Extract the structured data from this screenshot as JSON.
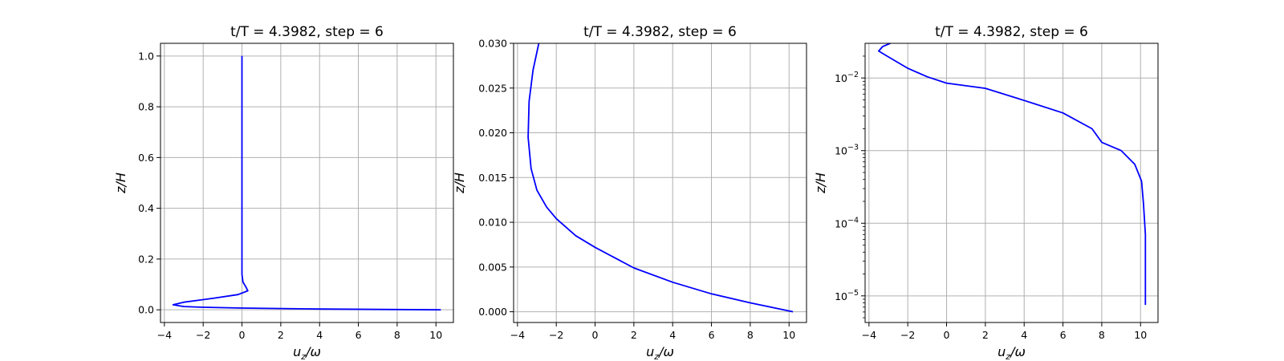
{
  "chart_data": [
    {
      "type": "line",
      "title": "t/T = 4.3982, step = 6",
      "xlabel_base": "u",
      "xlabel_sub": "z",
      "xlabel_tail": "/ω",
      "ylabel": "z/H",
      "xlim": [
        -4.2,
        10.9
      ],
      "ylim": [
        -0.05,
        1.05
      ],
      "yscale": "linear",
      "grid": true,
      "xticks": [
        -4,
        -2,
        0,
        2,
        4,
        6,
        8,
        10
      ],
      "xtick_labels": [
        "−4",
        "−2",
        "0",
        "2",
        "4",
        "6",
        "8",
        "10"
      ],
      "yticks": [
        0.0,
        0.2,
        0.4,
        0.6,
        0.8,
        1.0
      ],
      "ytick_labels": [
        "0.0",
        "0.2",
        "0.4",
        "0.6",
        "0.8",
        "1.0"
      ],
      "series": [
        {
          "color": "#0000ff",
          "x": [
            10.25,
            4.0,
            0.0,
            -2.0,
            -3.0,
            -3.55,
            -3.0,
            -1.5,
            -0.2,
            0.3,
            0.2,
            0.05,
            0.0,
            0.0,
            0.0
          ],
          "y": [
            0.0,
            0.003,
            0.007,
            0.01,
            0.013,
            0.02,
            0.03,
            0.045,
            0.06,
            0.075,
            0.09,
            0.11,
            0.14,
            0.5,
            1.0
          ]
        }
      ]
    },
    {
      "type": "line",
      "title": "t/T = 4.3982, step = 6",
      "xlabel_base": "u",
      "xlabel_sub": "z",
      "xlabel_tail": "/ω",
      "ylabel": "z/H",
      "xlim": [
        -4.2,
        10.9
      ],
      "ylim": [
        -0.0012,
        0.03
      ],
      "yscale": "linear",
      "grid": true,
      "xticks": [
        -4,
        -2,
        0,
        2,
        4,
        6,
        8,
        10
      ],
      "xtick_labels": [
        "−4",
        "−2",
        "0",
        "2",
        "4",
        "6",
        "8",
        "10"
      ],
      "yticks": [
        0.0,
        0.005,
        0.01,
        0.015,
        0.02,
        0.025,
        0.03
      ],
      "ytick_labels": [
        "0.000",
        "0.005",
        "0.010",
        "0.015",
        "0.020",
        "0.025",
        "0.030"
      ],
      "series": [
        {
          "color": "#0000ff",
          "x": [
            10.2,
            8.0,
            6.0,
            4.0,
            2.0,
            0.0,
            -1.0,
            -2.0,
            -2.5,
            -3.0,
            -3.3,
            -3.45,
            -3.4,
            -3.2,
            -2.9
          ],
          "y": [
            0.0,
            0.001,
            0.002,
            0.0033,
            0.0049,
            0.0072,
            0.0085,
            0.0104,
            0.0117,
            0.0136,
            0.016,
            0.0195,
            0.0235,
            0.027,
            0.03
          ]
        }
      ]
    },
    {
      "type": "line",
      "title": "t/T = 4.3982, step = 6",
      "xlabel_base": "u",
      "xlabel_sub": "z",
      "xlabel_tail": "/ω",
      "ylabel": "z/H",
      "xlim": [
        -4.2,
        10.9
      ],
      "ylim": [
        4.3e-06,
        0.03
      ],
      "yscale": "log",
      "grid": true,
      "xticks": [
        -4,
        -2,
        0,
        2,
        4,
        6,
        8,
        10
      ],
      "xtick_labels": [
        "−4",
        "−2",
        "0",
        "2",
        "4",
        "6",
        "8",
        "10"
      ],
      "yticks": [
        1e-05,
        0.0001,
        0.001,
        0.01
      ],
      "ytick_labels": [
        [
          "10",
          "−5"
        ],
        [
          "10",
          "−4"
        ],
        [
          "10",
          "−3"
        ],
        [
          "10",
          "−2"
        ]
      ],
      "series": [
        {
          "color": "#0000ff",
          "x": [
            10.25,
            10.25,
            10.15,
            10.05,
            9.7,
            9.0,
            8.0,
            7.5,
            6.0,
            4.0,
            2.0,
            0.0,
            -1.0,
            -2.0,
            -3.0,
            -3.5,
            -3.3,
            -2.9
          ],
          "y": [
            7.5e-06,
            7e-05,
            0.000185,
            0.00038,
            0.00065,
            0.001,
            0.0013,
            0.002,
            0.0033,
            0.0049,
            0.0072,
            0.0085,
            0.0104,
            0.0136,
            0.0195,
            0.0235,
            0.027,
            0.03
          ]
        }
      ]
    }
  ]
}
